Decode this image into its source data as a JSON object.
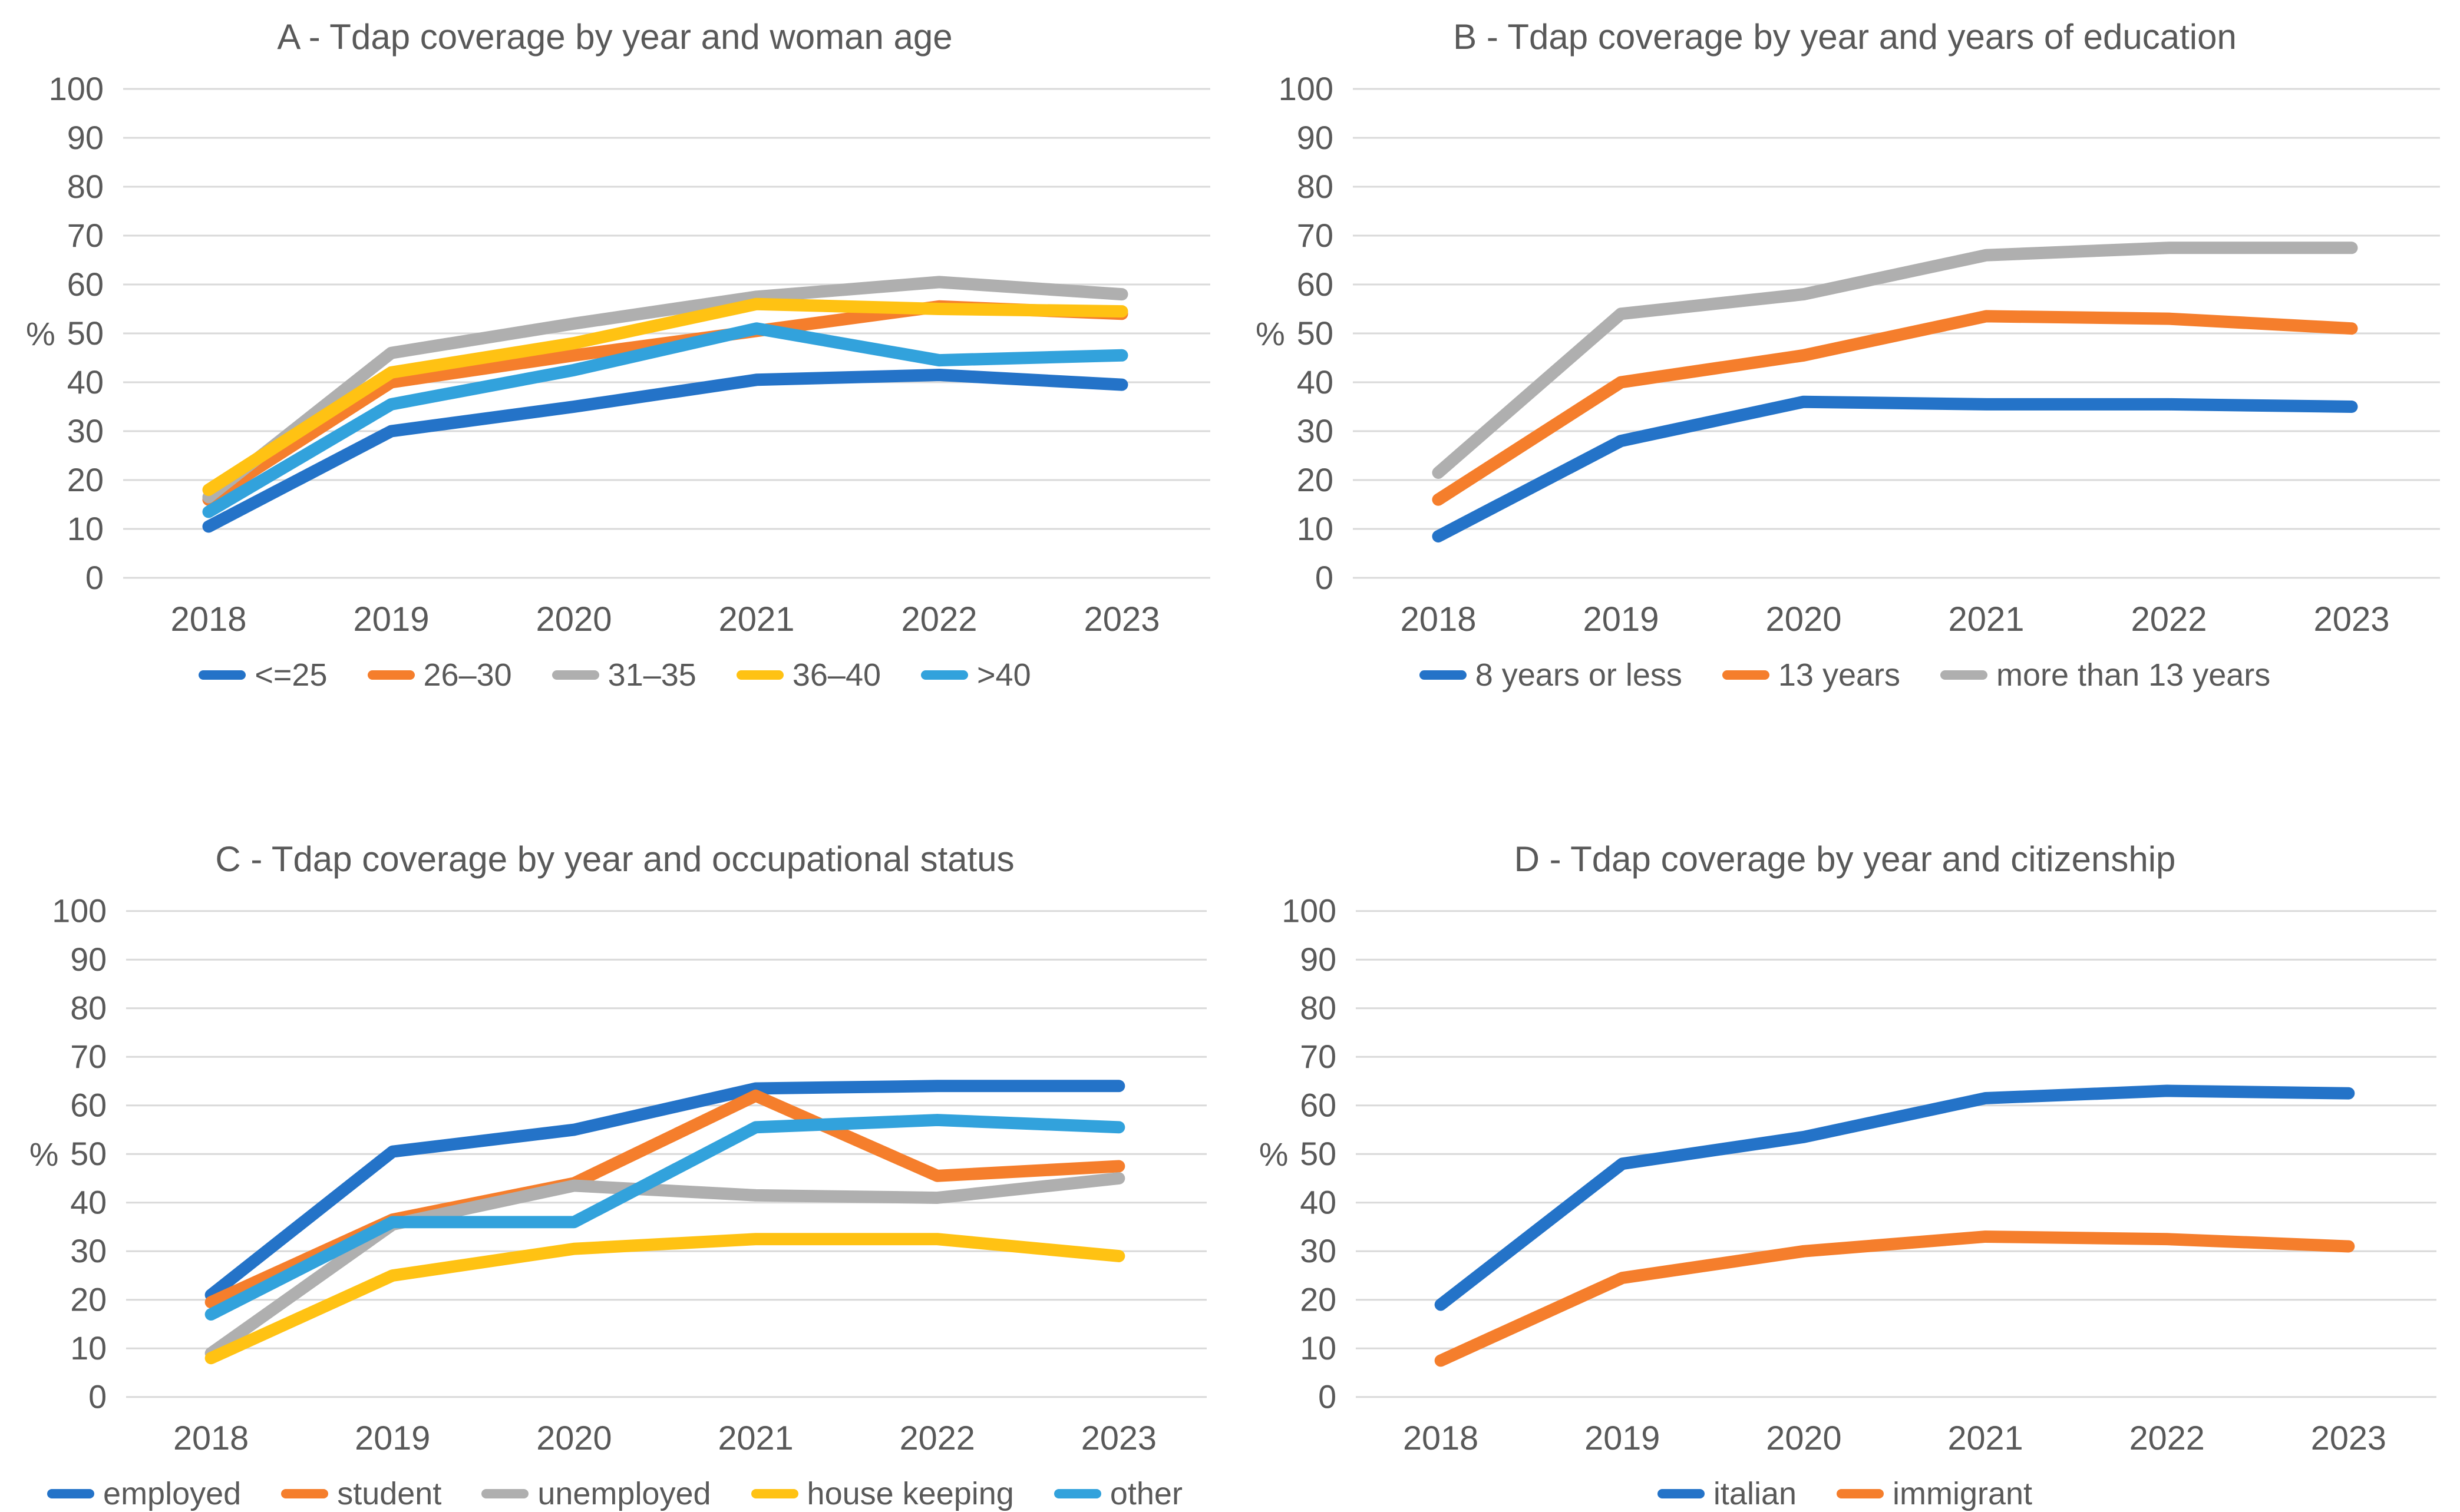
{
  "palette": {
    "blue": "#2473C8",
    "orange": "#F57E2C",
    "gray": "#AFAFAF",
    "yellow": "#FFC213",
    "lightblue": "#32A2DC"
  },
  "axis": {
    "ylabel": "%",
    "ylim": [
      0,
      100
    ],
    "ytick_step": 10,
    "tick_color": "#595959",
    "grid_color": "#D9D9D9",
    "grid_on": true,
    "legend_position": "bottom"
  },
  "chart_data": [
    {
      "type": "line",
      "title": "A - Tdap coverage by year and woman age",
      "xlabel": "",
      "ylabel": "%",
      "ylim": [
        0,
        100
      ],
      "categories": [
        "2018",
        "2019",
        "2020",
        "2021",
        "2022",
        "2023"
      ],
      "series": [
        {
          "name": "<=25",
          "color": "blue",
          "values": [
            10.5,
            30,
            35,
            40.5,
            41.5,
            39.5
          ]
        },
        {
          "name": "26–30",
          "color": "orange",
          "values": [
            16,
            40,
            45.5,
            50.5,
            55.5,
            54
          ]
        },
        {
          "name": "31–35",
          "color": "gray",
          "values": [
            16.5,
            46,
            52,
            57.5,
            60.5,
            58
          ]
        },
        {
          "name": "36–40",
          "color": "yellow",
          "values": [
            18,
            42,
            48,
            56,
            55,
            54.5
          ]
        },
        {
          "name": ">40",
          "color": "lightblue",
          "values": [
            13.5,
            35.5,
            42.5,
            51,
            44.5,
            45.5
          ]
        }
      ]
    },
    {
      "type": "line",
      "title": "B - Tdap coverage by year and years of education",
      "xlabel": "",
      "ylabel": "%",
      "ylim": [
        0,
        100
      ],
      "categories": [
        "2018",
        "2019",
        "2020",
        "2021",
        "2022",
        "2023"
      ],
      "series": [
        {
          "name": "8 years or less",
          "color": "blue",
          "values": [
            8.5,
            28,
            36,
            35.5,
            35.5,
            35
          ]
        },
        {
          "name": "13 years",
          "color": "orange",
          "values": [
            16,
            40,
            45.5,
            53.5,
            53,
            51
          ]
        },
        {
          "name": "more than 13 years",
          "color": "gray",
          "values": [
            21.5,
            54,
            58,
            66,
            67.5,
            67.5
          ]
        }
      ]
    },
    {
      "type": "line",
      "title": "C - Tdap coverage by year and occupational status",
      "xlabel": "",
      "ylabel": "%",
      "ylim": [
        0,
        100
      ],
      "categories": [
        "2018",
        "2019",
        "2020",
        "2021",
        "2022",
        "2023"
      ],
      "series": [
        {
          "name": "employed",
          "color": "blue",
          "values": [
            21,
            50.5,
            55,
            63.5,
            64,
            64
          ]
        },
        {
          "name": "student",
          "color": "orange",
          "values": [
            19.5,
            36.5,
            44,
            62,
            45.5,
            47.5
          ]
        },
        {
          "name": "unemployed",
          "color": "gray",
          "values": [
            9,
            35.5,
            43.5,
            41.5,
            41,
            45
          ]
        },
        {
          "name": "house keeping",
          "color": "yellow",
          "values": [
            8,
            25,
            30.5,
            32.5,
            32.5,
            29
          ]
        },
        {
          "name": "other",
          "color": "lightblue",
          "values": [
            17,
            36,
            36,
            55.5,
            57,
            55.5
          ]
        }
      ]
    },
    {
      "type": "line",
      "title": "D - Tdap coverage by year and citizenship",
      "xlabel": "",
      "ylabel": "%",
      "ylim": [
        0,
        100
      ],
      "categories": [
        "2018",
        "2019",
        "2020",
        "2021",
        "2022",
        "2023"
      ],
      "series": [
        {
          "name": "italian",
          "color": "blue",
          "values": [
            19,
            48,
            53.5,
            61.5,
            63,
            62.5
          ]
        },
        {
          "name": "immigrant",
          "color": "orange",
          "values": [
            7.5,
            24.5,
            30,
            33,
            32.5,
            31
          ]
        }
      ]
    }
  ]
}
